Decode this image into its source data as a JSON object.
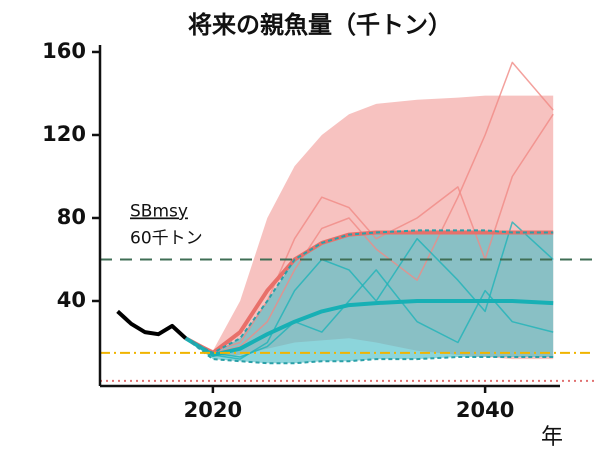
{
  "chart_data": {
    "type": "line",
    "title": "将来の親魚量（千トン）",
    "x_label": "年",
    "xlim": [
      2012,
      2048
    ],
    "xticks": [
      2020,
      2040
    ],
    "ylim": [
      0,
      165
    ],
    "yticks": [
      40,
      80,
      120,
      160
    ],
    "bands": [
      {
        "color": "#f29a96",
        "opacity": 0.6,
        "x": [
          2018,
          2020,
          2022,
          2024,
          2026,
          2028,
          2030,
          2032,
          2035,
          2038,
          2040,
          2042,
          2045
        ],
        "upper": [
          22,
          16,
          40,
          80,
          105,
          120,
          130,
          135,
          137,
          138,
          139,
          139,
          139
        ],
        "lower": [
          22,
          13,
          14,
          17,
          20,
          21,
          22,
          20,
          16,
          14,
          13,
          12,
          12
        ]
      },
      {
        "color": "#4fbfc8",
        "opacity": 0.65,
        "x": [
          2018,
          2020,
          2022,
          2024,
          2026,
          2028,
          2030,
          2032,
          2035,
          2038,
          2040,
          2042,
          2045
        ],
        "upper": [
          22,
          15,
          22,
          40,
          60,
          68,
          72,
          73,
          74,
          74,
          74,
          73,
          73
        ],
        "lower": [
          22,
          12,
          11,
          10,
          10,
          11,
          11,
          12,
          12,
          13,
          13,
          13,
          13
        ]
      }
    ],
    "series": [
      {
        "color": "#f08a84",
        "width": 1.5,
        "opacity": 0.8,
        "x": [
          2018,
          2020,
          2022,
          2024,
          2026,
          2028,
          2030,
          2032,
          2035,
          2038,
          2040,
          2042,
          2045
        ],
        "values": [
          22,
          16,
          20,
          40,
          70,
          90,
          85,
          70,
          80,
          95,
          60,
          100,
          130
        ]
      },
      {
        "color": "#f08a84",
        "width": 1.5,
        "opacity": 0.8,
        "x": [
          2018,
          2020,
          2022,
          2024,
          2026,
          2028,
          2030,
          2032,
          2035,
          2038,
          2040,
          2042,
          2045
        ],
        "values": [
          22,
          15,
          18,
          30,
          55,
          75,
          80,
          65,
          50,
          90,
          120,
          155,
          132
        ]
      },
      {
        "color": "#1fb3b8",
        "width": 1.5,
        "opacity": 0.8,
        "x": [
          2018,
          2020,
          2022,
          2024,
          2026,
          2028,
          2030,
          2032,
          2035,
          2038,
          2040,
          2042,
          2045
        ],
        "values": [
          22,
          14,
          12,
          20,
          45,
          60,
          55,
          40,
          70,
          50,
          35,
          78,
          60
        ]
      },
      {
        "color": "#1fb3b8",
        "width": 1.5,
        "opacity": 0.8,
        "x": [
          2018,
          2020,
          2022,
          2024,
          2026,
          2028,
          2030,
          2032,
          2035,
          2038,
          2040,
          2042,
          2045
        ],
        "values": [
          22,
          15,
          13,
          18,
          30,
          25,
          40,
          55,
          30,
          20,
          45,
          30,
          25
        ]
      },
      {
        "color": "#e8706a",
        "width": 4,
        "opacity": 1,
        "x": [
          2018,
          2020,
          2022,
          2024,
          2026,
          2028,
          2030,
          2032,
          2035,
          2038,
          2040,
          2042,
          2045
        ],
        "values": [
          22,
          15,
          25,
          45,
          60,
          68,
          72,
          73,
          73,
          73,
          73,
          73,
          73
        ]
      },
      {
        "color": "#17b0b5",
        "width": 4,
        "opacity": 1,
        "x": [
          2018,
          2020,
          2022,
          2024,
          2026,
          2028,
          2030,
          2032,
          2035,
          2038,
          2040,
          2042,
          2045
        ],
        "values": [
          22,
          14,
          17,
          24,
          30,
          35,
          38,
          39,
          40,
          40,
          40,
          40,
          39
        ]
      },
      {
        "color": "#000000",
        "width": 4,
        "opacity": 1,
        "x": [
          2013,
          2014,
          2015,
          2016,
          2017,
          2018
        ],
        "values": [
          35,
          29,
          25,
          24,
          28,
          22
        ]
      }
    ],
    "hlines": [
      {
        "value": 60,
        "color": "#3f6e55",
        "dash": "12 8",
        "labels": [
          "SBmsy",
          "60千トン"
        ]
      },
      {
        "value": 15,
        "color": "#f0b400",
        "dash": "10 4 2 4"
      },
      {
        "value": 1.5,
        "color": "#e07070",
        "dash": "2 4"
      }
    ]
  }
}
